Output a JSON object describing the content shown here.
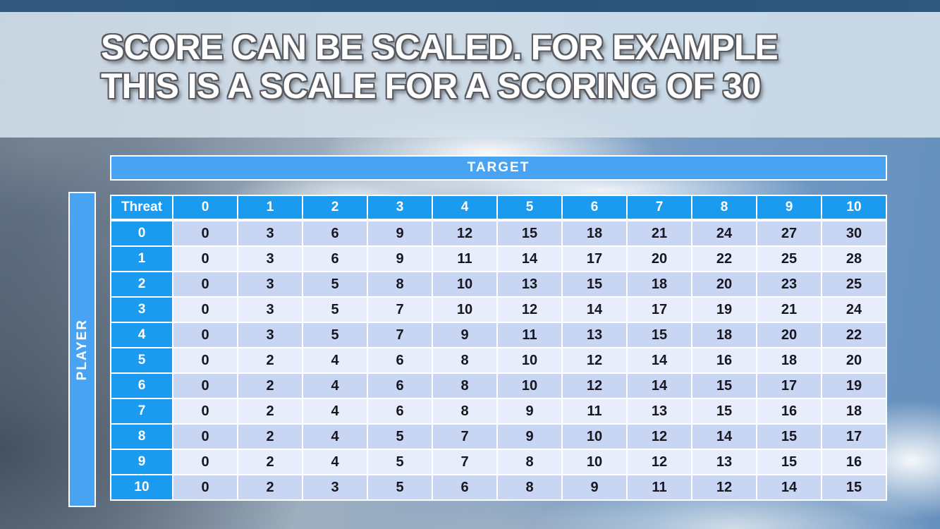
{
  "slide": {
    "title_line1": "SCORE CAN BE SCALED. FOR EXAMPLE",
    "title_line2": "THIS IS A SCALE FOR A SCORING OF 30"
  },
  "matrix": {
    "target_label": "TARGET",
    "player_label": "PLAYER",
    "corner_label": "Threat",
    "column_headers": [
      "0",
      "1",
      "2",
      "3",
      "4",
      "5",
      "6",
      "7",
      "8",
      "9",
      "10"
    ],
    "row_headers": [
      "0",
      "1",
      "2",
      "3",
      "4",
      "5",
      "6",
      "7",
      "8",
      "9",
      "10"
    ],
    "rows": [
      [
        0,
        3,
        6,
        9,
        12,
        15,
        18,
        21,
        24,
        27,
        30
      ],
      [
        0,
        3,
        6,
        9,
        11,
        14,
        17,
        20,
        22,
        25,
        28
      ],
      [
        0,
        3,
        5,
        8,
        10,
        13,
        15,
        18,
        20,
        23,
        25
      ],
      [
        0,
        3,
        5,
        7,
        10,
        12,
        14,
        17,
        19,
        21,
        24
      ],
      [
        0,
        3,
        5,
        7,
        9,
        11,
        13,
        15,
        18,
        20,
        22
      ],
      [
        0,
        2,
        4,
        6,
        8,
        10,
        12,
        14,
        16,
        18,
        20
      ],
      [
        0,
        2,
        4,
        6,
        8,
        10,
        12,
        14,
        15,
        17,
        19
      ],
      [
        0,
        2,
        4,
        6,
        8,
        9,
        11,
        13,
        15,
        16,
        18
      ],
      [
        0,
        2,
        4,
        5,
        7,
        9,
        10,
        12,
        14,
        15,
        17
      ],
      [
        0,
        2,
        4,
        5,
        7,
        8,
        10,
        12,
        13,
        15,
        16
      ],
      [
        0,
        2,
        3,
        5,
        6,
        8,
        9,
        11,
        12,
        14,
        15
      ]
    ]
  },
  "colors": {
    "header_blue": "#1B9BF0",
    "band_blue": "#48A4F2",
    "row_even": "#C8D5F3",
    "row_odd": "#E8EDFB",
    "cell_text": "#17171F",
    "top_strip": "#2D567C",
    "separator_white": "#FFFFFF"
  }
}
